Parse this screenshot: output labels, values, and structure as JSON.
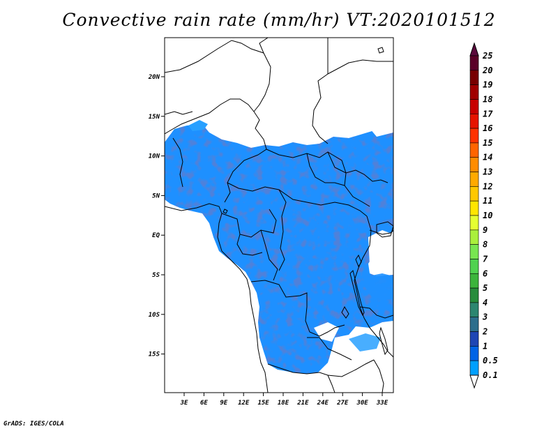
{
  "title": "Convective rain rate (mm/hr) VT:2020101512",
  "footer": "GrADS: IGES/COLA",
  "map": {
    "lon_ticks": [
      "3E",
      "6E",
      "9E",
      "12E",
      "15E",
      "18E",
      "21E",
      "24E",
      "27E",
      "30E",
      "33E"
    ],
    "lat_ticks": [
      "20N",
      "15N",
      "10N",
      "5N",
      "EQ",
      "5S",
      "10S",
      "15S"
    ]
  },
  "colorbar": {
    "labels": [
      "0.1",
      "0.5",
      "1",
      "2",
      "3",
      "4",
      "5",
      "6",
      "7",
      "8",
      "9",
      "10",
      "11",
      "12",
      "13",
      "14",
      "15",
      "16",
      "17",
      "18",
      "19",
      "20",
      "25"
    ],
    "colors": [
      "#00a0ff",
      "#0064e6",
      "#1e46b4",
      "#2d6e8c",
      "#2c8670",
      "#278c3c",
      "#3cb43c",
      "#50d250",
      "#78e650",
      "#aaf03c",
      "#e6ff32",
      "#ffe600",
      "#ffc800",
      "#ffaa00",
      "#ff8c00",
      "#ff6400",
      "#ff3200",
      "#e61400",
      "#c80000",
      "#a00000",
      "#780000",
      "#5a0028"
    ],
    "top_color": "#5a0a3c"
  }
}
